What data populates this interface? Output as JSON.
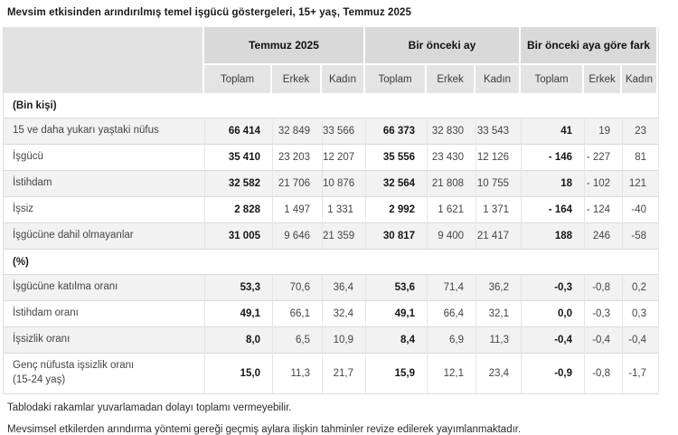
{
  "title": "Mevsim etkisinden arındırılmış temel işgücü göstergeleri, 15+ yaş, Temmuz 2025",
  "table": {
    "column_groups": [
      {
        "label": "Temmuz 2025",
        "columns": [
          "Toplam",
          "Erkek",
          "Kadın"
        ]
      },
      {
        "label": "Bir önceki ay",
        "columns": [
          "Toplam",
          "Erkek",
          "Kadın"
        ]
      },
      {
        "label": "Bir önceki aya göre fark",
        "columns": [
          "Toplam",
          "Erkek",
          "Kadın"
        ]
      }
    ],
    "sections": [
      {
        "header": "(Bin kişi)",
        "rows": [
          {
            "label": "15 ve daha yukarı yaştaki nüfus",
            "values": [
              "66 414",
              "32 849",
              "33 566",
              "66 373",
              "32 830",
              "33 543",
              "41",
              "19",
              "23"
            ]
          },
          {
            "label": "İşgücü",
            "values": [
              "35 410",
              "23 203",
              "12 207",
              "35 556",
              "23 430",
              "12 126",
              "- 146",
              "- 227",
              "81"
            ]
          },
          {
            "label": "İstihdam",
            "values": [
              "32 582",
              "21 706",
              "10 876",
              "32 564",
              "21 808",
              "10 755",
              "18",
              "- 102",
              "121"
            ]
          },
          {
            "label": "İşsiz",
            "values": [
              "2 828",
              "1 497",
              "1 331",
              "2 992",
              "1 621",
              "1 371",
              "- 164",
              "- 124",
              "-40"
            ]
          },
          {
            "label": "İşgücüne dahil olmayanlar",
            "values": [
              "31 005",
              "9 646",
              "21 359",
              "30 817",
              "9 400",
              "21 417",
              "188",
              "246",
              "-58"
            ]
          }
        ]
      },
      {
        "header": "(%)",
        "rows": [
          {
            "label": "İşgücüne katılma oranı",
            "values": [
              "53,3",
              "70,6",
              "36,4",
              "53,6",
              "71,4",
              "36,2",
              "-0,3",
              "-0,8",
              "0,2"
            ]
          },
          {
            "label": "İstihdam oranı",
            "values": [
              "49,1",
              "66,1",
              "32,4",
              "49,1",
              "66,4",
              "32,1",
              "0,0",
              "-0,3",
              "0,3"
            ]
          },
          {
            "label": "İşsizlik oranı",
            "values": [
              "8,0",
              "6,5",
              "10,9",
              "8,4",
              "6,9",
              "11,3",
              "-0,4",
              "-0,4",
              "-0,4"
            ]
          },
          {
            "label": "Genç nüfusta işsizlik oranı\n(15-24 yaş)",
            "tall": true,
            "values": [
              "15,0",
              "11,3",
              "21,7",
              "15,9",
              "12,1",
              "23,4",
              "-0,9",
              "-0,8",
              "-1,7"
            ]
          }
        ]
      }
    ]
  },
  "footnotes": [
    "Tablodaki rakamlar yuvarlamadan dolayı toplamı vermeyebilir.",
    "Mevsimsel etkilerden arındırma yöntemi gereği geçmiş aylara ilişkin tahminler revize edilerek yayımlanmaktadır."
  ],
  "colors": {
    "group_header_bg": "#d9d9d9",
    "sub_header_bg": "#e4e4e4",
    "stripe_bg": "#f2f2f2",
    "row_border": "#d9d9d9",
    "bold_text": "#161616",
    "regular_text": "#444444"
  }
}
